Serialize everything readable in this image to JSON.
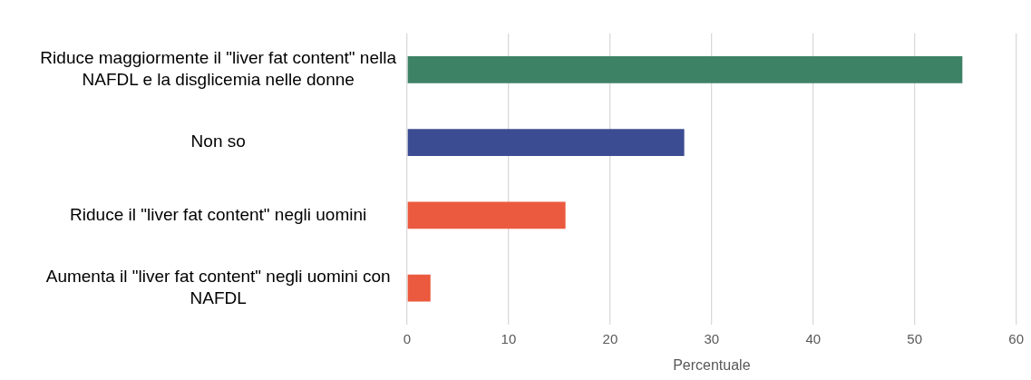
{
  "chart_data": {
    "type": "bar",
    "orientation": "horizontal",
    "xlabel": "Percentuale",
    "categories": [
      "Riduce maggiormente il \"liver fat content\" nella NAFDL e la disglicemia nelle donne",
      "Non so",
      "Riduce il \"liver fat content\" negli uomini",
      "Aumenta il \"liver fat content\" negli uomini con NAFDL"
    ],
    "values": [
      54.7,
      27.3,
      15.6,
      2.3
    ],
    "colors": [
      "#3e8266",
      "#3c4c92",
      "#eb5a3e",
      "#eb5a3e"
    ],
    "xlim": [
      0,
      60
    ],
    "xticks": [
      0,
      10,
      20,
      30,
      40,
      50,
      60
    ],
    "grid": "x",
    "legend": false
  }
}
